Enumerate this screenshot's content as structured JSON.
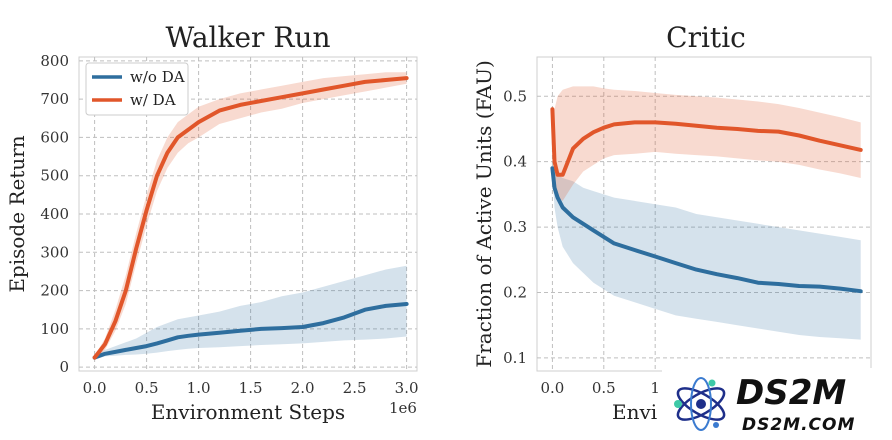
{
  "colors": {
    "wo_da": "#2e6e9e",
    "w_da": "#e1562a",
    "grid": "#bfbfbf"
  },
  "chart_data": [
    {
      "type": "line",
      "title": "Walker Run",
      "xlabel": "Environment Steps",
      "ylabel": "Episode Return",
      "x_offset_label": "1e6",
      "xlim": [
        -0.15,
        3.1
      ],
      "ylim": [
        -10,
        810
      ],
      "xticks": [
        0.0,
        0.5,
        1.0,
        1.5,
        2.0,
        2.5,
        3.0
      ],
      "xtick_labels": [
        "0.0",
        "0.5",
        "1.0",
        "1.5",
        "2.0",
        "2.5",
        "3.0"
      ],
      "yticks": [
        0,
        100,
        200,
        300,
        400,
        500,
        600,
        700,
        800
      ],
      "ytick_labels": [
        "0",
        "100",
        "200",
        "300",
        "400",
        "500",
        "600",
        "700",
        "800"
      ],
      "grid": true,
      "legend": "top-left",
      "series": [
        {
          "name": "w/o DA",
          "x": [
            0.0,
            0.1,
            0.2,
            0.3,
            0.4,
            0.5,
            0.6,
            0.7,
            0.8,
            0.9,
            1.0,
            1.2,
            1.4,
            1.6,
            1.8,
            2.0,
            2.2,
            2.4,
            2.6,
            2.8,
            3.0
          ],
          "y": [
            25,
            35,
            40,
            45,
            50,
            55,
            62,
            70,
            78,
            82,
            85,
            90,
            95,
            100,
            102,
            105,
            115,
            130,
            150,
            160,
            165
          ],
          "upper": [
            30,
            45,
            55,
            65,
            75,
            90,
            105,
            115,
            125,
            130,
            135,
            145,
            160,
            170,
            185,
            195,
            210,
            225,
            240,
            255,
            265
          ],
          "lower": [
            20,
            28,
            30,
            32,
            33,
            35,
            38,
            42,
            45,
            48,
            50,
            52,
            55,
            58,
            60,
            62,
            66,
            70,
            72,
            75,
            80
          ]
        },
        {
          "name": "w/ DA",
          "x": [
            0.0,
            0.1,
            0.2,
            0.3,
            0.4,
            0.5,
            0.6,
            0.7,
            0.8,
            0.9,
            1.0,
            1.2,
            1.4,
            1.6,
            1.8,
            2.0,
            2.2,
            2.4,
            2.6,
            2.8,
            3.0
          ],
          "y": [
            25,
            60,
            120,
            200,
            310,
            410,
            500,
            560,
            600,
            620,
            640,
            670,
            685,
            695,
            705,
            715,
            725,
            735,
            745,
            750,
            755
          ],
          "upper": [
            30,
            75,
            150,
            240,
            350,
            450,
            540,
            600,
            640,
            660,
            680,
            700,
            715,
            725,
            735,
            745,
            755,
            760,
            765,
            770,
            770
          ],
          "lower": [
            20,
            45,
            95,
            165,
            270,
            370,
            460,
            520,
            560,
            585,
            600,
            635,
            650,
            665,
            675,
            690,
            700,
            710,
            720,
            730,
            740
          ]
        }
      ]
    },
    {
      "type": "line",
      "title": "Critic",
      "xlabel": "Envi",
      "ylabel": "Fraction of Active Units (FAU)",
      "xlim": [
        -0.15,
        3.1
      ],
      "ylim": [
        0.08,
        0.56
      ],
      "xticks": [
        0.0,
        0.5,
        1.0
      ],
      "xtick_labels": [
        "0.0",
        "0.5",
        "1"
      ],
      "yticks": [
        0.1,
        0.2,
        0.3,
        0.4,
        0.5
      ],
      "ytick_labels": [
        "0.1",
        "0.2",
        "0.3",
        "0.4",
        "0.5"
      ],
      "grid": true,
      "series": [
        {
          "name": "w/o DA",
          "x": [
            0.0,
            0.02,
            0.05,
            0.1,
            0.2,
            0.3,
            0.4,
            0.5,
            0.6,
            0.8,
            1.0,
            1.2,
            1.4,
            1.6,
            1.8,
            2.0,
            2.2,
            2.4,
            2.6,
            2.8,
            3.0
          ],
          "y": [
            0.39,
            0.36,
            0.345,
            0.33,
            0.315,
            0.305,
            0.295,
            0.285,
            0.275,
            0.265,
            0.255,
            0.245,
            0.235,
            0.228,
            0.222,
            0.215,
            0.213,
            0.21,
            0.209,
            0.206,
            0.202
          ],
          "upper": [
            0.395,
            0.385,
            0.38,
            0.375,
            0.37,
            0.36,
            0.355,
            0.35,
            0.345,
            0.34,
            0.335,
            0.33,
            0.32,
            0.315,
            0.31,
            0.305,
            0.3,
            0.295,
            0.29,
            0.285,
            0.28
          ],
          "lower": [
            0.385,
            0.33,
            0.3,
            0.27,
            0.245,
            0.23,
            0.215,
            0.205,
            0.195,
            0.185,
            0.175,
            0.165,
            0.16,
            0.155,
            0.15,
            0.145,
            0.14,
            0.135,
            0.132,
            0.13,
            0.128
          ]
        },
        {
          "name": "w/ DA",
          "x": [
            0.0,
            0.02,
            0.05,
            0.1,
            0.2,
            0.3,
            0.4,
            0.5,
            0.6,
            0.8,
            1.0,
            1.2,
            1.4,
            1.6,
            1.8,
            2.0,
            2.2,
            2.4,
            2.6,
            2.8,
            3.0
          ],
          "y": [
            0.48,
            0.4,
            0.38,
            0.38,
            0.42,
            0.435,
            0.445,
            0.452,
            0.457,
            0.46,
            0.46,
            0.458,
            0.455,
            0.452,
            0.45,
            0.447,
            0.446,
            0.44,
            0.432,
            0.425,
            0.418
          ],
          "upper": [
            0.485,
            0.48,
            0.5,
            0.51,
            0.515,
            0.515,
            0.515,
            0.512,
            0.51,
            0.508,
            0.505,
            0.502,
            0.5,
            0.498,
            0.495,
            0.492,
            0.488,
            0.482,
            0.475,
            0.468,
            0.46
          ],
          "lower": [
            0.475,
            0.36,
            0.345,
            0.34,
            0.365,
            0.385,
            0.395,
            0.405,
            0.41,
            0.412,
            0.415,
            0.412,
            0.41,
            0.408,
            0.405,
            0.402,
            0.4,
            0.395,
            0.388,
            0.382,
            0.375
          ]
        }
      ]
    }
  ],
  "watermark": {
    "brand": "DS2M",
    "domain": "DS2M.COM"
  }
}
